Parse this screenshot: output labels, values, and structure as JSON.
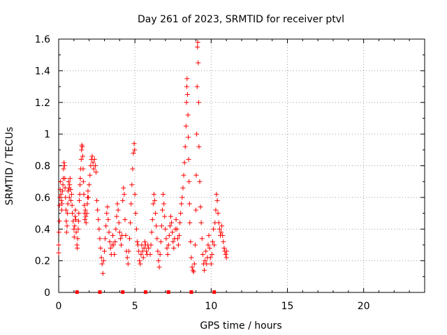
{
  "chart_data": {
    "type": "scatter",
    "title": "Day 261 of 2023, SRMTID for receiver ptvl",
    "xlabel": "GPS time / hours",
    "ylabel": "SRMTID / TECUs",
    "xlim": [
      0,
      24
    ],
    "ylim": [
      0,
      1.6
    ],
    "xticks": [
      0,
      5,
      10,
      15,
      20
    ],
    "yticks": [
      0,
      0.2,
      0.4,
      0.6,
      0.8,
      1,
      1.2,
      1.4,
      1.6
    ],
    "ytick_labels": [
      "0",
      "0.2",
      "0.4",
      "0.6",
      "0.8",
      "1",
      "1.2",
      "1.4",
      "1.6"
    ],
    "grid": true,
    "marker": "+",
    "color": "#ff0000",
    "series": [
      {
        "name": "SRMTID",
        "points": [
          [
            0.0,
            0.25
          ],
          [
            0.0,
            0.3
          ],
          [
            0.02,
            0.38
          ],
          [
            0.05,
            0.45
          ],
          [
            0.05,
            0.55
          ],
          [
            0.08,
            0.6
          ],
          [
            0.1,
            0.65
          ],
          [
            0.12,
            0.7
          ],
          [
            0.15,
            0.62
          ],
          [
            0.18,
            0.58
          ],
          [
            0.2,
            0.52
          ],
          [
            0.22,
            0.56
          ],
          [
            0.25,
            0.64
          ],
          [
            0.28,
            0.68
          ],
          [
            0.3,
            0.72
          ],
          [
            0.32,
            0.78
          ],
          [
            0.35,
            0.82
          ],
          [
            0.38,
            0.8
          ],
          [
            0.4,
            0.72
          ],
          [
            0.42,
            0.66
          ],
          [
            0.45,
            0.6
          ],
          [
            0.48,
            0.52
          ],
          [
            0.5,
            0.45
          ],
          [
            0.52,
            0.38
          ],
          [
            0.55,
            0.42
          ],
          [
            0.58,
            0.5
          ],
          [
            0.6,
            0.56
          ],
          [
            0.62,
            0.64
          ],
          [
            0.65,
            0.7
          ],
          [
            0.68,
            0.66
          ],
          [
            0.7,
            0.6
          ],
          [
            0.72,
            0.68
          ],
          [
            0.75,
            0.72
          ],
          [
            0.78,
            0.65
          ],
          [
            0.8,
            0.58
          ],
          [
            0.85,
            0.62
          ],
          [
            0.88,
            0.55
          ],
          [
            0.9,
            0.5
          ],
          [
            0.95,
            0.45
          ],
          [
            1.0,
            0.4
          ],
          [
            1.02,
            0.35
          ],
          [
            1.05,
            0.42
          ],
          [
            1.08,
            0.48
          ],
          [
            1.1,
            0.52
          ],
          [
            1.12,
            0.46
          ],
          [
            1.15,
            0.38
          ],
          [
            1.2,
            0.3
          ],
          [
            1.22,
            0.28
          ],
          [
            1.25,
            0.34
          ],
          [
            1.28,
            0.4
          ],
          [
            1.3,
            0.45
          ],
          [
            1.32,
            0.5
          ],
          [
            1.35,
            0.58
          ],
          [
            1.38,
            0.62
          ],
          [
            1.4,
            0.68
          ],
          [
            1.42,
            0.72
          ],
          [
            1.45,
            0.78
          ],
          [
            1.48,
            0.84
          ],
          [
            1.5,
            0.9
          ],
          [
            1.52,
            0.93
          ],
          [
            1.55,
            0.92
          ],
          [
            1.58,
            0.86
          ],
          [
            1.6,
            0.78
          ],
          [
            1.62,
            0.7
          ],
          [
            1.65,
            0.62
          ],
          [
            1.68,
            0.55
          ],
          [
            1.7,
            0.5
          ],
          [
            1.72,
            0.46
          ],
          [
            1.75,
            0.52
          ],
          [
            1.78,
            0.48
          ],
          [
            1.8,
            0.44
          ],
          [
            1.85,
            0.5
          ],
          [
            1.88,
            0.56
          ],
          [
            1.9,
            0.6
          ],
          [
            1.92,
            0.64
          ],
          [
            1.95,
            0.6
          ],
          [
            2.0,
            0.68
          ],
          [
            2.05,
            0.74
          ],
          [
            2.1,
            0.8
          ],
          [
            2.15,
            0.84
          ],
          [
            2.2,
            0.86
          ],
          [
            2.25,
            0.82
          ],
          [
            2.3,
            0.78
          ],
          [
            2.35,
            0.84
          ],
          [
            2.4,
            0.8
          ],
          [
            2.45,
            0.76
          ],
          [
            2.5,
            0.58
          ],
          [
            2.55,
            0.52
          ],
          [
            2.6,
            0.46
          ],
          [
            2.65,
            0.4
          ],
          [
            2.7,
            0.34
          ],
          [
            2.75,
            0.28
          ],
          [
            2.8,
            0.22
          ],
          [
            2.85,
            0.18
          ],
          [
            2.9,
            0.12
          ],
          [
            2.95,
            0.2
          ],
          [
            3.0,
            0.26
          ],
          [
            3.05,
            0.34
          ],
          [
            3.1,
            0.42
          ],
          [
            3.15,
            0.5
          ],
          [
            3.2,
            0.54
          ],
          [
            3.25,
            0.46
          ],
          [
            3.3,
            0.38
          ],
          [
            3.35,
            0.32
          ],
          [
            3.4,
            0.28
          ],
          [
            3.45,
            0.24
          ],
          [
            3.5,
            0.3
          ],
          [
            3.55,
            0.36
          ],
          [
            3.6,
            0.3
          ],
          [
            3.65,
            0.24
          ],
          [
            3.7,
            0.32
          ],
          [
            3.75,
            0.4
          ],
          [
            3.8,
            0.48
          ],
          [
            3.85,
            0.56
          ],
          [
            3.9,
            0.52
          ],
          [
            3.95,
            0.44
          ],
          [
            4.0,
            0.38
          ],
          [
            4.05,
            0.34
          ],
          [
            4.1,
            0.3
          ],
          [
            4.15,
            0.36
          ],
          [
            4.2,
            0.58
          ],
          [
            4.25,
            0.66
          ],
          [
            4.3,
            0.62
          ],
          [
            4.35,
            0.46
          ],
          [
            4.4,
            0.36
          ],
          [
            4.45,
            0.26
          ],
          [
            4.5,
            0.22
          ],
          [
            4.55,
            0.18
          ],
          [
            4.6,
            0.26
          ],
          [
            4.65,
            0.34
          ],
          [
            4.7,
            0.44
          ],
          [
            4.75,
            0.56
          ],
          [
            4.8,
            0.68
          ],
          [
            4.85,
            0.78
          ],
          [
            4.9,
            0.88
          ],
          [
            4.95,
            0.94
          ],
          [
            4.98,
            0.9
          ],
          [
            5.0,
            0.62
          ],
          [
            5.05,
            0.5
          ],
          [
            5.1,
            0.4
          ],
          [
            5.15,
            0.32
          ],
          [
            5.2,
            0.3
          ],
          [
            5.25,
            0.26
          ],
          [
            5.3,
            0.2
          ],
          [
            5.35,
            0.18
          ],
          [
            5.4,
            0.24
          ],
          [
            5.45,
            0.3
          ],
          [
            5.5,
            0.26
          ],
          [
            5.55,
            0.22
          ],
          [
            5.6,
            0.28
          ],
          [
            5.65,
            0.32
          ],
          [
            5.7,
            0.3
          ],
          [
            5.75,
            0.26
          ],
          [
            5.8,
            0.24
          ],
          [
            5.85,
            0.3
          ],
          [
            5.9,
            0.28
          ],
          [
            6.0,
            0.24
          ],
          [
            6.05,
            0.3
          ],
          [
            6.1,
            0.38
          ],
          [
            6.15,
            0.46
          ],
          [
            6.2,
            0.56
          ],
          [
            6.25,
            0.62
          ],
          [
            6.3,
            0.58
          ],
          [
            6.35,
            0.5
          ],
          [
            6.4,
            0.42
          ],
          [
            6.45,
            0.34
          ],
          [
            6.5,
            0.26
          ],
          [
            6.55,
            0.2
          ],
          [
            6.6,
            0.16
          ],
          [
            6.65,
            0.24
          ],
          [
            6.7,
            0.32
          ],
          [
            6.75,
            0.42
          ],
          [
            6.8,
            0.52
          ],
          [
            6.85,
            0.62
          ],
          [
            6.9,
            0.56
          ],
          [
            6.95,
            0.48
          ],
          [
            7.0,
            0.4
          ],
          [
            7.05,
            0.34
          ],
          [
            7.1,
            0.28
          ],
          [
            7.15,
            0.24
          ],
          [
            7.2,
            0.3
          ],
          [
            7.25,
            0.36
          ],
          [
            7.3,
            0.42
          ],
          [
            7.35,
            0.48
          ],
          [
            7.4,
            0.44
          ],
          [
            7.45,
            0.38
          ],
          [
            7.5,
            0.32
          ],
          [
            7.55,
            0.28
          ],
          [
            7.6,
            0.34
          ],
          [
            7.65,
            0.4
          ],
          [
            7.7,
            0.46
          ],
          [
            7.75,
            0.4
          ],
          [
            7.8,
            0.34
          ],
          [
            7.85,
            0.3
          ],
          [
            7.9,
            0.36
          ],
          [
            7.95,
            0.44
          ],
          [
            8.0,
            0.5
          ],
          [
            8.05,
            0.56
          ],
          [
            8.1,
            0.6
          ],
          [
            8.15,
            0.66
          ],
          [
            8.2,
            0.74
          ],
          [
            8.25,
            0.82
          ],
          [
            8.3,
            0.92
          ],
          [
            8.35,
            1.05
          ],
          [
            8.38,
            1.2
          ],
          [
            8.4,
            1.3
          ],
          [
            8.42,
            1.35
          ],
          [
            8.45,
            1.25
          ],
          [
            8.48,
            1.12
          ],
          [
            8.5,
            0.98
          ],
          [
            8.52,
            0.84
          ],
          [
            8.55,
            0.7
          ],
          [
            8.58,
            0.56
          ],
          [
            8.6,
            0.44
          ],
          [
            8.65,
            0.32
          ],
          [
            8.7,
            0.22
          ],
          [
            8.75,
            0.16
          ],
          [
            8.8,
            0.14
          ],
          [
            8.85,
            0.13
          ],
          [
            8.9,
            0.18
          ],
          [
            8.95,
            0.3
          ],
          [
            9.0,
            0.52
          ],
          [
            9.02,
            0.74
          ],
          [
            9.05,
            1.0
          ],
          [
            9.08,
            1.3
          ],
          [
            9.1,
            1.55
          ],
          [
            9.12,
            1.58
          ],
          [
            9.15,
            1.45
          ],
          [
            9.18,
            1.2
          ],
          [
            9.2,
            0.92
          ],
          [
            9.25,
            0.7
          ],
          [
            9.3,
            0.54
          ],
          [
            9.35,
            0.44
          ],
          [
            9.4,
            0.34
          ],
          [
            9.45,
            0.24
          ],
          [
            9.5,
            0.18
          ],
          [
            9.55,
            0.14
          ],
          [
            9.6,
            0.2
          ],
          [
            9.65,
            0.26
          ],
          [
            9.7,
            0.18
          ],
          [
            9.75,
            0.22
          ],
          [
            9.8,
            0.3
          ],
          [
            9.85,
            0.36
          ],
          [
            9.9,
            0.28
          ],
          [
            9.95,
            0.22
          ],
          [
            10.0,
            0.18
          ],
          [
            10.05,
            0.24
          ],
          [
            10.1,
            0.32
          ],
          [
            10.15,
            0.4
          ],
          [
            10.2,
            0.3
          ],
          [
            10.25,
            0.44
          ],
          [
            10.3,
            0.52
          ],
          [
            10.35,
            0.62
          ],
          [
            10.4,
            0.58
          ],
          [
            10.45,
            0.5
          ],
          [
            10.5,
            0.44
          ],
          [
            10.55,
            0.4
          ],
          [
            10.6,
            0.36
          ],
          [
            10.65,
            0.38
          ],
          [
            10.7,
            0.42
          ],
          [
            10.75,
            0.36
          ],
          [
            10.8,
            0.32
          ],
          [
            10.85,
            0.28
          ],
          [
            10.9,
            0.26
          ],
          [
            10.95,
            0.24
          ],
          [
            11.0,
            0.22
          ],
          [
            11.02,
            0.26
          ]
        ]
      }
    ],
    "baseline_markers_x": [
      1.2,
      2.7,
      4.2,
      5.7,
      7.2,
      8.7,
      10.2
    ]
  }
}
